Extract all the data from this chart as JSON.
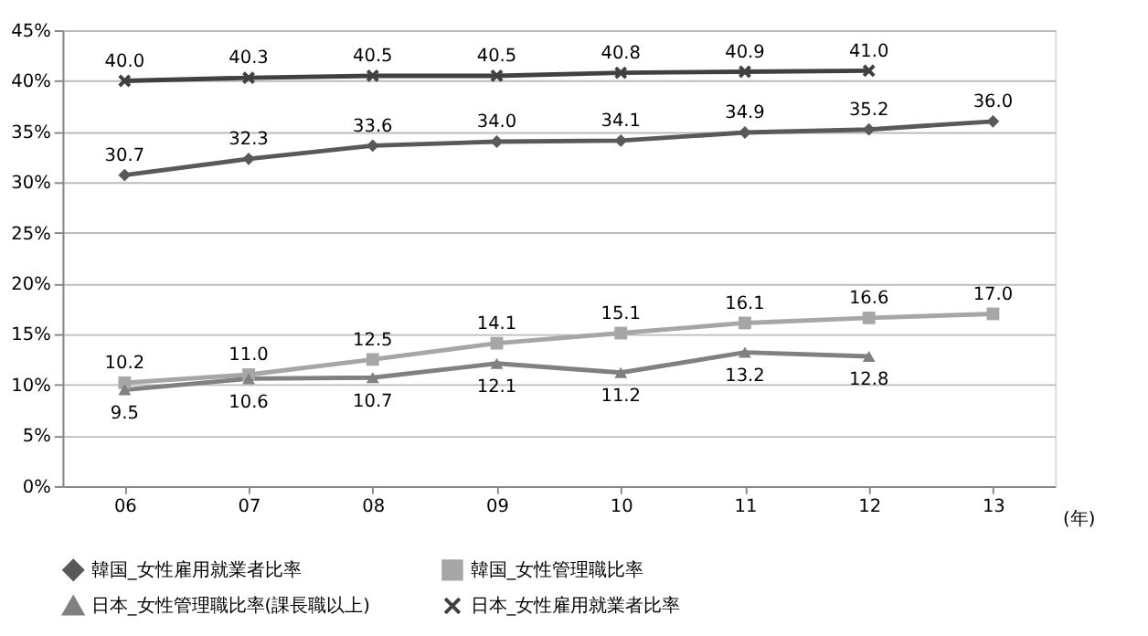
{
  "chart_data": {
    "type": "line",
    "xlabel": "(年)",
    "categories": [
      "06",
      "07",
      "08",
      "09",
      "10",
      "11",
      "12",
      "13"
    ],
    "ylim": [
      0,
      45
    ],
    "yticks": [
      {
        "value": 0,
        "label": "0%"
      },
      {
        "value": 5,
        "label": "5%"
      },
      {
        "value": 10,
        "label": "10%"
      },
      {
        "value": 15,
        "label": "15%"
      },
      {
        "value": 20,
        "label": "20%"
      },
      {
        "value": 25,
        "label": "25%"
      },
      {
        "value": 30,
        "label": "30%"
      },
      {
        "value": 35,
        "label": "35%"
      },
      {
        "value": 40,
        "label": "40%"
      },
      {
        "value": 45,
        "label": "45%"
      }
    ],
    "grid": "y",
    "legend": "bottom",
    "series": [
      {
        "name": "韓国_女性雇用就業者比率",
        "color": "#595959",
        "marker": "diamond",
        "values": [
          30.7,
          32.3,
          33.6,
          34.0,
          34.1,
          34.9,
          35.2,
          36.0
        ],
        "value_labels": [
          "30.7",
          "32.3",
          "33.6",
          "34.0",
          "34.1",
          "34.9",
          "35.2",
          "36.0"
        ]
      },
      {
        "name": "韓国_女性管理職比率",
        "color": "#a6a6a6",
        "marker": "square",
        "values": [
          10.2,
          11.0,
          12.5,
          14.1,
          15.1,
          16.1,
          16.6,
          17.0
        ],
        "value_labels": [
          "10.2",
          "11.0",
          "12.5",
          "14.1",
          "15.1",
          "16.1",
          "16.6",
          "17.0"
        ]
      },
      {
        "name": "日本_女性管理職比率(課長職以上)",
        "color": "#808080",
        "marker": "triangle",
        "values": [
          9.5,
          10.6,
          10.7,
          12.1,
          11.2,
          13.2,
          12.8,
          null
        ],
        "value_labels": [
          "9.5",
          "10.6",
          "10.7",
          "12.1",
          "11.2",
          "13.2",
          "12.8",
          null
        ]
      },
      {
        "name": "日本_女性雇用就業者比率",
        "color": "#404040",
        "marker": "cross",
        "values": [
          40.0,
          40.3,
          40.5,
          40.5,
          40.8,
          40.9,
          41.0,
          null
        ],
        "value_labels": [
          "40.0",
          "40.3",
          "40.5",
          "40.5",
          "40.8",
          "40.9",
          "41.0",
          null
        ]
      }
    ]
  }
}
